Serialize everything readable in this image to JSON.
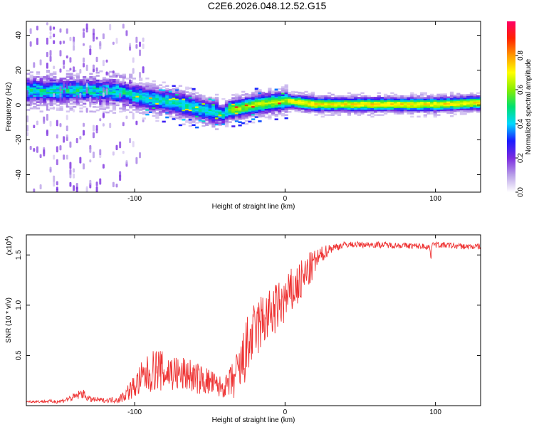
{
  "title": "C2E6.2026.048.12.52.G15",
  "chart_data": [
    {
      "type": "heatmap",
      "panel": "spectrogram",
      "xlabel": "Height of straight line (km)",
      "ylabel": "Frequency (Hz)",
      "xlim": [
        -172,
        130
      ],
      "ylim": [
        -50,
        48
      ],
      "xticks": [
        -100,
        0,
        100
      ],
      "xtick_labels": [
        "-100",
        "0",
        "100"
      ],
      "yticks": [
        -40,
        -20,
        0,
        20,
        40
      ],
      "ytick_labels": [
        "-40",
        "-20",
        "0",
        "20",
        "40"
      ],
      "ridge": {
        "x": [
          -172,
          -150,
          -130,
          -110,
          -100,
          -90,
          -80,
          -70,
          -60,
          -50,
          -42,
          -38,
          -30,
          -20,
          -10,
          0,
          10,
          20,
          40,
          60,
          80,
          100,
          130
        ],
        "y": [
          8,
          8,
          8,
          7,
          5,
          3,
          2,
          0,
          -2,
          -4,
          -6,
          -3,
          -2,
          0,
          1,
          2,
          1,
          0,
          0,
          0,
          0,
          0,
          1
        ]
      },
      "colorbar": {
        "label": "Normalized spectral amplitude",
        "range": [
          0,
          1
        ],
        "ticks": [
          0,
          0.2,
          0.4,
          0.6,
          0.8
        ],
        "tick_labels": [
          "0.0",
          "0.2",
          "0.4",
          "0.6",
          "0.8"
        ],
        "colors": [
          "#ffffff",
          "#b9a0e8",
          "#7b2be0",
          "#1a1aff",
          "#00d8ff",
          "#00e070",
          "#88ee00",
          "#ffff00",
          "#ff9900",
          "#ff2200",
          "#ff0066"
        ]
      }
    },
    {
      "type": "line",
      "panel": "snr",
      "xlabel": "Height of straight line (km)",
      "ylabel": "SNR (10 * v/v)",
      "y_multiplier_label": "(x10",
      "y_multiplier_exp": "4",
      "y_multiplier_close": ")",
      "xlim": [
        -172,
        130
      ],
      "ylim": [
        0,
        1.7
      ],
      "xticks": [
        -100,
        0,
        100
      ],
      "xtick_labels": [
        "-100",
        "0",
        "100"
      ],
      "yticks": [
        0.5,
        1.0,
        1.5
      ],
      "ytick_labels": [
        "0.5",
        "1.0",
        "1.5"
      ],
      "series": [
        {
          "name": "SNR",
          "color": "#ee3333",
          "x": [
            -172,
            -150,
            -140,
            -135,
            -130,
            -120,
            -110,
            -100,
            -95,
            -90,
            -85,
            -80,
            -75,
            -70,
            -65,
            -60,
            -55,
            -50,
            -45,
            -40,
            -35,
            -30,
            -25,
            -20,
            -15,
            -10,
            -5,
            0,
            5,
            10,
            15,
            20,
            25,
            30,
            40,
            60,
            80,
            96,
            97,
            98,
            100,
            120,
            130
          ],
          "y": [
            0.04,
            0.04,
            0.08,
            0.12,
            0.06,
            0.05,
            0.06,
            0.18,
            0.25,
            0.3,
            0.35,
            0.3,
            0.32,
            0.28,
            0.3,
            0.26,
            0.24,
            0.22,
            0.18,
            0.17,
            0.22,
            0.32,
            0.55,
            0.7,
            0.82,
            0.88,
            0.95,
            1.02,
            1.12,
            1.2,
            1.3,
            1.42,
            1.5,
            1.56,
            1.6,
            1.6,
            1.59,
            1.58,
            1.46,
            1.64,
            1.6,
            1.58,
            1.58
          ],
          "spread": [
            0.01,
            0.02,
            0.04,
            0.05,
            0.03,
            0.02,
            0.04,
            0.12,
            0.18,
            0.2,
            0.22,
            0.2,
            0.2,
            0.18,
            0.18,
            0.16,
            0.15,
            0.14,
            0.12,
            0.1,
            0.2,
            0.28,
            0.32,
            0.3,
            0.3,
            0.26,
            0.26,
            0.24,
            0.24,
            0.22,
            0.2,
            0.12,
            0.08,
            0.05,
            0.03,
            0.03,
            0.03,
            0.03,
            0.02,
            0.03,
            0.03,
            0.03,
            0.03
          ]
        }
      ]
    }
  ]
}
